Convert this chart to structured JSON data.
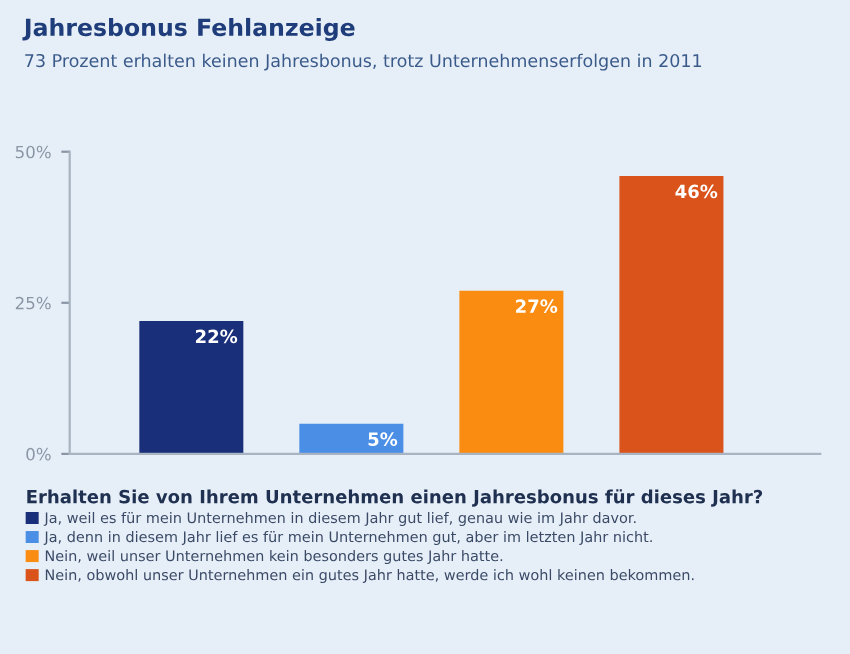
{
  "chart_data": {
    "type": "bar",
    "title": "Jahresbonus Fehlanzeige",
    "subtitle": "73 Prozent erhalten keinen Jahresbonus, trotz Unternehmenserfolgen in 2011",
    "legend_title": "Erhalten Sie von Ihrem Unternehmen einen Jahresbonus für dieses Jahr?",
    "categories": [
      null,
      null,
      null,
      null
    ],
    "series": [
      {
        "name": "Ja, weil es für mein Unternehmen in diesem Jahr gut lief, genau wie im Jahr davor.",
        "color": "#1a2f7a",
        "values": [
          22,
          null,
          null,
          null
        ],
        "value_labels": [
          "22%",
          null,
          null,
          null
        ]
      },
      {
        "name": "Ja, denn in diesem Jahr lief es für mein Unternehmen gut, aber im letzten Jahr nicht.",
        "color": "#4a8ee6",
        "values": [
          null,
          5,
          null,
          null
        ],
        "value_labels": [
          null,
          "5%",
          null,
          null
        ]
      },
      {
        "name": "Nein, weil unser Unternehmen kein besonders gutes Jahr hatte.",
        "color": "#fb8c12",
        "values": [
          null,
          null,
          27,
          null
        ],
        "value_labels": [
          null,
          null,
          "27%",
          null
        ]
      },
      {
        "name": "Nein, obwohl unser Unternehmen ein gutes Jahr hatte, werde ich wohl keinen bekommen.",
        "color": "#d9531a",
        "values": [
          null,
          null,
          null,
          46
        ],
        "value_labels": [
          null,
          null,
          null,
          "46%"
        ]
      }
    ],
    "ylim": [
      0,
      50
    ],
    "yticks": [
      {
        "value": 0,
        "label": "0%"
      },
      {
        "value": 25,
        "label": "25%"
      },
      {
        "value": 50,
        "label": "50%"
      }
    ],
    "grid": false,
    "legend": "bottom"
  }
}
